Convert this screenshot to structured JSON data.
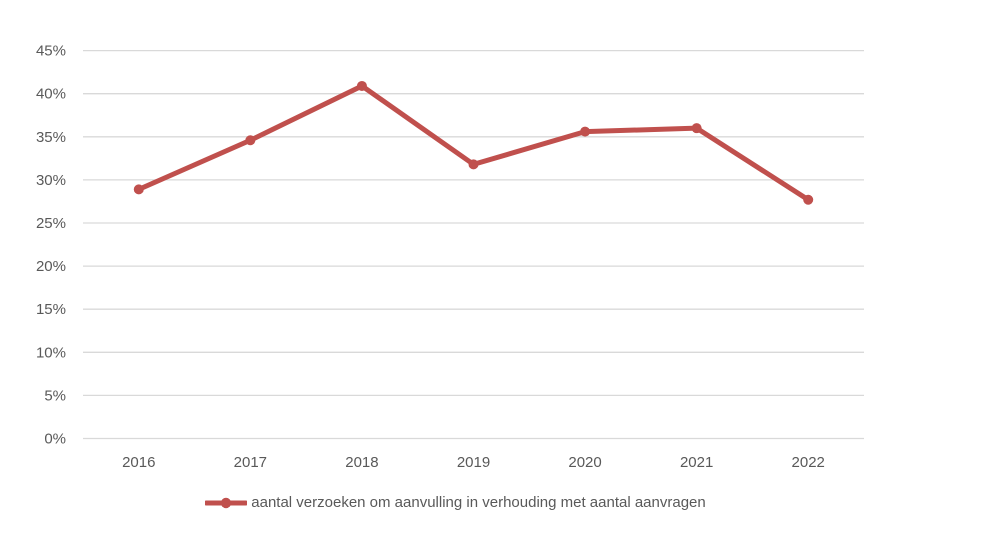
{
  "chart_data": {
    "type": "line",
    "categories": [
      "2016",
      "2017",
      "2018",
      "2019",
      "2020",
      "2021",
      "2022"
    ],
    "series": [
      {
        "name": "aantal verzoeken om aanvulling in verhouding met aantal aanvragen",
        "values": [
          28.9,
          34.6,
          40.9,
          31.8,
          35.6,
          36.0,
          27.7
        ]
      }
    ],
    "values_unit": "%",
    "title": "",
    "xlabel": "",
    "ylabel": "",
    "ylim": [
      0,
      45
    ],
    "ytick_step": 5,
    "ytick_labels": [
      "0%",
      "5%",
      "10%",
      "15%",
      "20%",
      "25%",
      "30%",
      "35%",
      "40%",
      "45%"
    ],
    "grid": true,
    "legend_position": "bottom",
    "marker": "circle",
    "colors": {
      "series": "#C0504D",
      "gridline": "#D9D9D9",
      "axis_text": "#595959",
      "legend_text": "#595959",
      "background": "#FFFFFF"
    }
  }
}
